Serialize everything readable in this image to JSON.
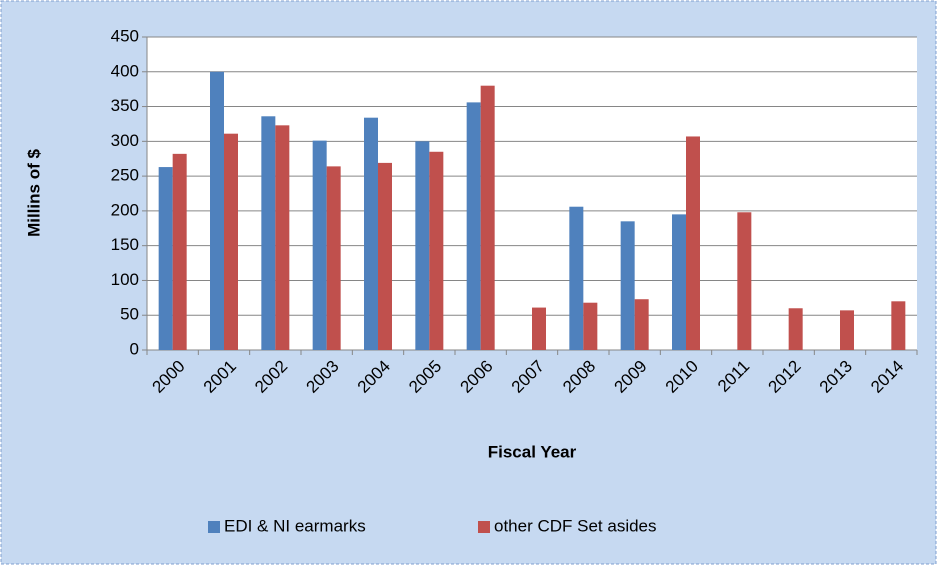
{
  "chart_data": {
    "type": "bar",
    "x_label": "Fiscal Year",
    "y_label": "Millins of $",
    "categories": [
      "2000",
      "2001",
      "2002",
      "2003",
      "2004",
      "2005",
      "2006",
      "2007",
      "2008",
      "2009",
      "2010",
      "2011",
      "2012",
      "2013",
      "2014"
    ],
    "series": [
      {
        "name": "EDI & NI earmarks",
        "color": "#4f81bd",
        "values": [
          263,
          400,
          336,
          301,
          334,
          300,
          356,
          null,
          206,
          185,
          195,
          null,
          null,
          null,
          null
        ]
      },
      {
        "name": "other CDF Set asides",
        "color": "#c0504d",
        "values": [
          282,
          311,
          323,
          264,
          269,
          285,
          380,
          61,
          68,
          73,
          307,
          198,
          60,
          57,
          70
        ]
      }
    ],
    "ylim": [
      0,
      450
    ],
    "yticks": [
      0,
      50,
      100,
      150,
      200,
      250,
      300,
      350,
      400,
      450
    ],
    "grid": true,
    "legend": "bottom"
  }
}
